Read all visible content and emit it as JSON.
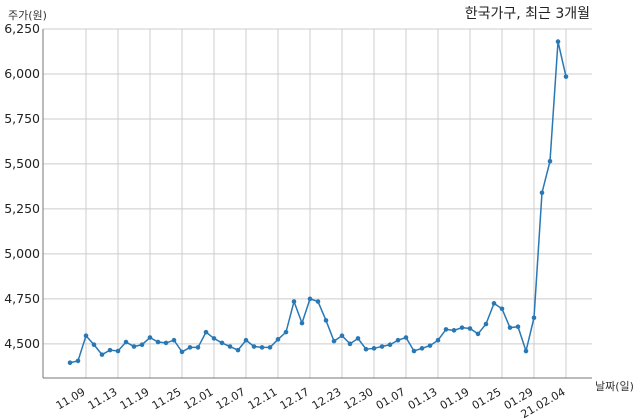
{
  "chart_data": {
    "type": "line",
    "title": "한국가구, 최근 3개월",
    "xlabel": "날짜(일)",
    "ylabel": "주가(원)",
    "ylim": [
      4310,
      6250
    ],
    "yticks": [
      4500,
      4750,
      5000,
      5250,
      5500,
      5750,
      6000,
      6250
    ],
    "ytick_labels": [
      "4,500",
      "4,750",
      "5,000",
      "5,250",
      "5,500",
      "5,750",
      "6,000",
      "6,250"
    ],
    "grid": true,
    "colors": {
      "line": "#2878b5",
      "grid": "#cccccc",
      "axis": "#777777"
    },
    "x": [
      "2020-11-05",
      "2020-11-06",
      "2020-11-09",
      "2020-11-10",
      "2020-11-11",
      "2020-11-12",
      "2020-11-13",
      "2020-11-16",
      "2020-11-17",
      "2020-11-18",
      "2020-11-19",
      "2020-11-20",
      "2020-11-23",
      "2020-11-24",
      "2020-11-25",
      "2020-11-26",
      "2020-11-27",
      "2020-11-30",
      "2020-12-01",
      "2020-12-02",
      "2020-12-03",
      "2020-12-04",
      "2020-12-07",
      "2020-12-08",
      "2020-12-09",
      "2020-12-10",
      "2020-12-11",
      "2020-12-14",
      "2020-12-15",
      "2020-12-16",
      "2020-12-17",
      "2020-12-18",
      "2020-12-21",
      "2020-12-22",
      "2020-12-23",
      "2020-12-24",
      "2020-12-28",
      "2020-12-29",
      "2020-12-30",
      "2021-01-04",
      "2021-01-05",
      "2021-01-06",
      "2021-01-07",
      "2021-01-08",
      "2021-01-11",
      "2021-01-12",
      "2021-01-13",
      "2021-01-14",
      "2021-01-15",
      "2021-01-18",
      "2021-01-19",
      "2021-01-20",
      "2021-01-21",
      "2021-01-22",
      "2021-01-25",
      "2021-01-26",
      "2021-01-27",
      "2021-01-28",
      "2021-01-29",
      "2021-02-01",
      "2021-02-02",
      "2021-02-03",
      "2021-02-04"
    ],
    "values": [
      4395,
      4405,
      4545,
      4495,
      4440,
      4465,
      4460,
      4510,
      4485,
      4495,
      4535,
      4510,
      4505,
      4520,
      4455,
      4480,
      4480,
      4565,
      4530,
      4505,
      4485,
      4465,
      4520,
      4485,
      4480,
      4480,
      4525,
      4565,
      4735,
      4615,
      4750,
      4735,
      4630,
      4515,
      4545,
      4500,
      4530,
      4470,
      4475,
      4485,
      4495,
      4520,
      4535,
      4460,
      4475,
      4490,
      4520,
      4580,
      4575,
      4590,
      4585,
      4555,
      4610,
      4725,
      4695,
      4590,
      4595,
      4460,
      4645,
      5340,
      5515,
      6180,
      5985
    ],
    "xtick_labels": [
      "11.09",
      "11.13",
      "11.19",
      "11.25",
      "12.01",
      "12.07",
      "12.11",
      "12.17",
      "12.23",
      "12.30",
      "01.07",
      "01.13",
      "01.19",
      "01.25",
      "01.29",
      "21.02.04"
    ],
    "xtick_dates": [
      "2020-11-09",
      "2020-11-13",
      "2020-11-19",
      "2020-11-25",
      "2020-12-01",
      "2020-12-07",
      "2020-12-11",
      "2020-12-17",
      "2020-12-23",
      "2020-12-30",
      "2021-01-07",
      "2021-01-13",
      "2021-01-19",
      "2021-01-25",
      "2021-01-29",
      "2021-02-04"
    ]
  }
}
